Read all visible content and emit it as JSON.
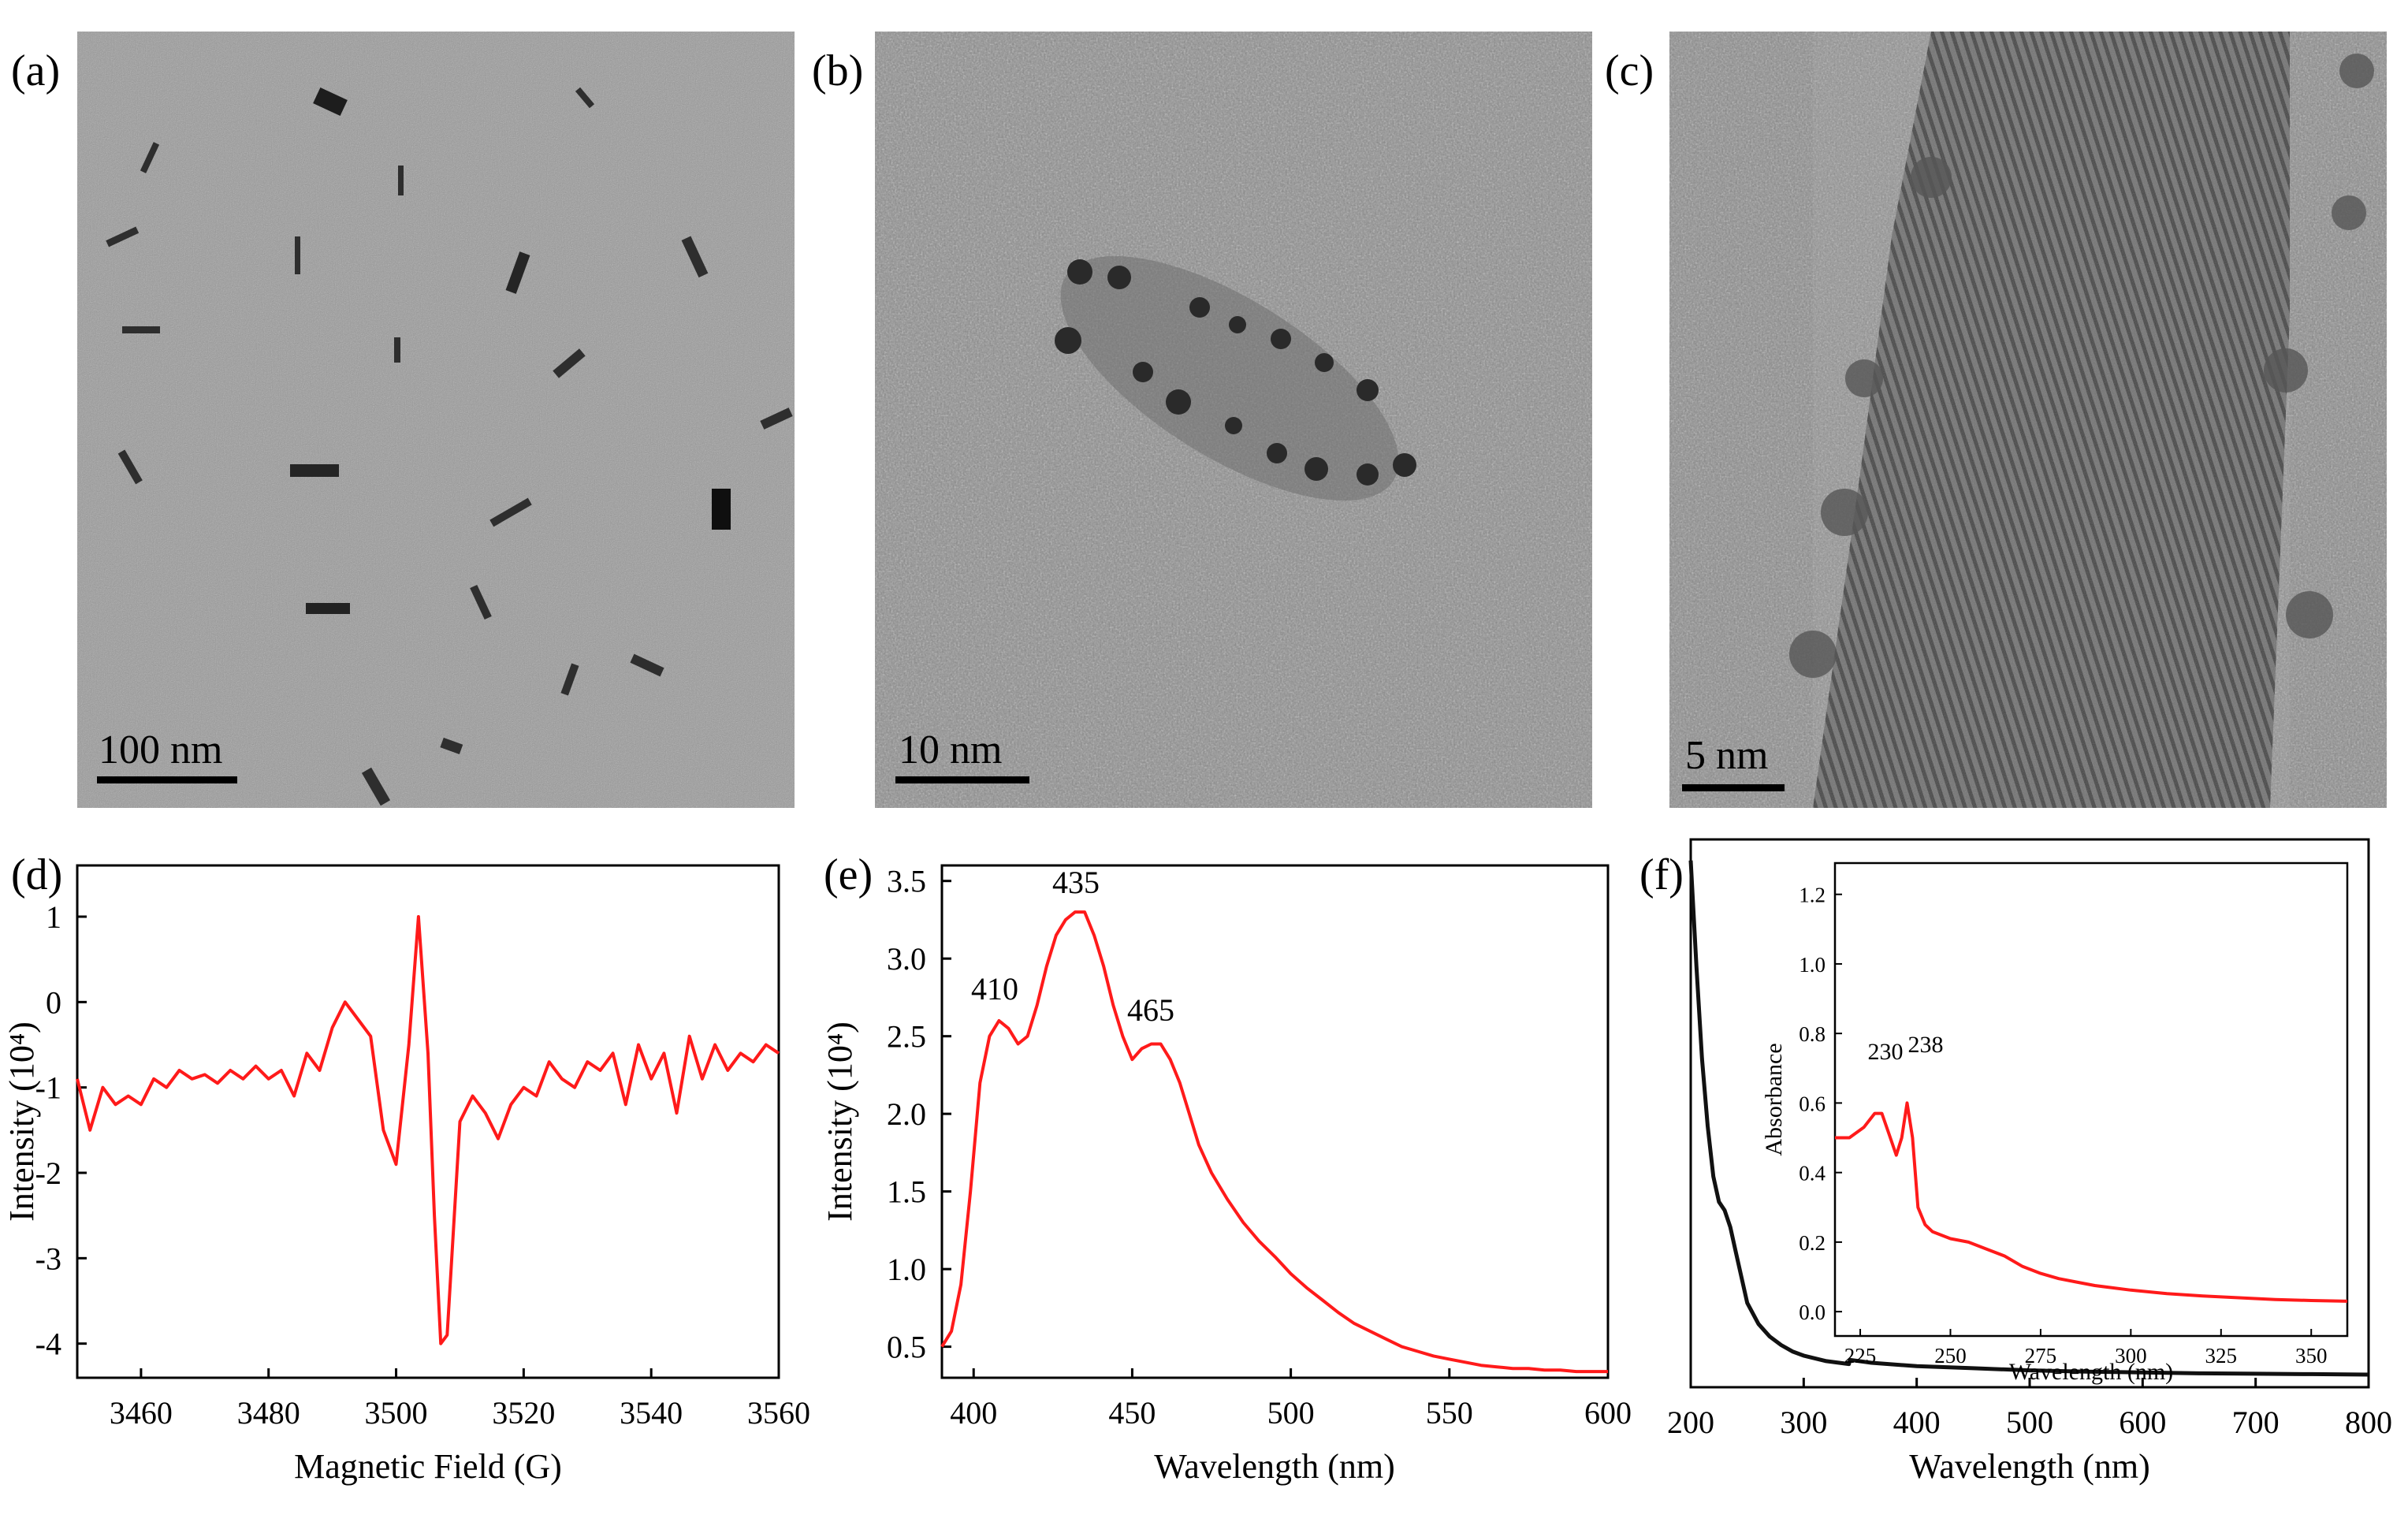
{
  "figure": {
    "panels": {
      "a": {
        "label": "(a)",
        "scale_bar": "100 nm"
      },
      "b": {
        "label": "(b)",
        "scale_bar": "10 nm"
      },
      "c": {
        "label": "(c)",
        "scale_bar": "5 nm"
      },
      "d": {
        "label": "(d)"
      },
      "e": {
        "label": "(e)"
      },
      "f": {
        "label": "(f)"
      }
    },
    "colors": {
      "red_curve": "#ff1a1a",
      "black_curve": "#111111",
      "tem_background": "#8f8f8f"
    }
  },
  "chart_data": [
    {
      "panel": "d",
      "type": "line",
      "title": "",
      "xlabel": "Magnetic Field (G)",
      "ylabel": "Intensity (10⁴)",
      "xlim": [
        3450,
        3560
      ],
      "ylim": [
        -4.4,
        1.6
      ],
      "xticks": [
        3460,
        3480,
        3500,
        3520,
        3540,
        3560
      ],
      "yticks": [
        1,
        0,
        -1,
        -2,
        -3,
        -4
      ],
      "series": [
        {
          "name": "EPR",
          "color": "#ff1a1a",
          "x": [
            3450,
            3452,
            3454,
            3456,
            3458,
            3460,
            3462,
            3464,
            3466,
            3468,
            3470,
            3472,
            3474,
            3476,
            3478,
            3480,
            3482,
            3484,
            3486,
            3488,
            3490,
            3492,
            3494,
            3496,
            3498,
            3500,
            3502,
            3503.5,
            3505,
            3506,
            3507,
            3508,
            3510,
            3512,
            3514,
            3516,
            3518,
            3520,
            3522,
            3524,
            3526,
            3528,
            3530,
            3532,
            3534,
            3536,
            3538,
            3540,
            3542,
            3544,
            3546,
            3548,
            3550,
            3552,
            3554,
            3556,
            3558,
            3560
          ],
          "y": [
            -0.9,
            -1.5,
            -1.0,
            -1.2,
            -1.1,
            -1.2,
            -0.9,
            -1.0,
            -0.8,
            -0.9,
            -0.85,
            -0.95,
            -0.8,
            -0.9,
            -0.75,
            -0.9,
            -0.8,
            -1.1,
            -0.6,
            -0.8,
            -0.3,
            0.0,
            -0.2,
            -0.4,
            -1.5,
            -1.9,
            -0.5,
            1.0,
            -0.6,
            -2.5,
            -4.0,
            -3.9,
            -1.4,
            -1.1,
            -1.3,
            -1.6,
            -1.2,
            -1.0,
            -1.1,
            -0.7,
            -0.9,
            -1.0,
            -0.7,
            -0.8,
            -0.6,
            -1.2,
            -0.5,
            -0.9,
            -0.6,
            -1.3,
            -0.4,
            -0.9,
            -0.5,
            -0.8,
            -0.6,
            -0.7,
            -0.5,
            -0.6
          ]
        }
      ]
    },
    {
      "panel": "e",
      "type": "line",
      "title": "",
      "xlabel": "Wavelength (nm)",
      "ylabel": "Intensity (10⁴)",
      "xlim": [
        390,
        600
      ],
      "ylim": [
        0.3,
        3.6
      ],
      "xticks": [
        400,
        450,
        500,
        550,
        600
      ],
      "yticks": [
        0.5,
        1.0,
        1.5,
        2.0,
        2.5,
        3.0,
        3.5
      ],
      "annotations": [
        "410",
        "435",
        "465"
      ],
      "series": [
        {
          "name": "PL",
          "color": "#ff1a1a",
          "x": [
            390,
            393,
            396,
            399,
            402,
            405,
            408,
            411,
            414,
            417,
            420,
            423,
            426,
            429,
            432,
            435,
            438,
            441,
            444,
            447,
            450,
            453,
            456,
            459,
            462,
            465,
            468,
            471,
            475,
            480,
            485,
            490,
            495,
            500,
            505,
            510,
            515,
            520,
            525,
            530,
            535,
            540,
            545,
            550,
            555,
            560,
            565,
            570,
            575,
            580,
            585,
            590,
            595,
            600
          ],
          "y": [
            0.5,
            0.6,
            0.9,
            1.5,
            2.2,
            2.5,
            2.6,
            2.55,
            2.45,
            2.5,
            2.7,
            2.95,
            3.15,
            3.25,
            3.3,
            3.3,
            3.15,
            2.95,
            2.7,
            2.5,
            2.35,
            2.42,
            2.45,
            2.45,
            2.35,
            2.2,
            2.0,
            1.8,
            1.62,
            1.45,
            1.3,
            1.18,
            1.08,
            0.97,
            0.88,
            0.8,
            0.72,
            0.65,
            0.6,
            0.55,
            0.5,
            0.47,
            0.44,
            0.42,
            0.4,
            0.38,
            0.37,
            0.36,
            0.36,
            0.35,
            0.35,
            0.34,
            0.34,
            0.34
          ]
        }
      ]
    },
    {
      "panel": "f",
      "type": "line",
      "title": "",
      "xlabel": "Wavelength (nm)",
      "ylabel": "",
      "xlim": [
        200,
        800
      ],
      "ylim": [
        0,
        1.3
      ],
      "xticks": [
        200,
        300,
        400,
        500,
        600,
        700,
        800
      ],
      "yticks": [],
      "series": [
        {
          "name": "UV-vis",
          "color": "#111111",
          "x": [
            200,
            205,
            210,
            215,
            220,
            225,
            230,
            235,
            240,
            245,
            250,
            260,
            270,
            280,
            290,
            300,
            320,
            340,
            341,
            360,
            400,
            450,
            500,
            550,
            600,
            650,
            700,
            750,
            800
          ],
          "y": [
            1.25,
            1.0,
            0.78,
            0.62,
            0.5,
            0.44,
            0.42,
            0.38,
            0.32,
            0.26,
            0.2,
            0.15,
            0.12,
            0.1,
            0.085,
            0.075,
            0.062,
            0.055,
            0.065,
            0.058,
            0.05,
            0.045,
            0.04,
            0.037,
            0.035,
            0.033,
            0.032,
            0.031,
            0.03
          ]
        }
      ],
      "inset": {
        "xlabel": "Wavelength (nm)",
        "ylabel": "Absorbance",
        "xlim": [
          218,
          360
        ],
        "ylim": [
          -0.07,
          1.29
        ],
        "xticks": [
          225,
          250,
          275,
          300,
          325,
          350
        ],
        "yticks": [
          0.0,
          0.2,
          0.4,
          0.6,
          0.8,
          1.0,
          1.2
        ],
        "annotations": [
          "230",
          "238"
        ],
        "series": [
          {
            "name": "UV-vis inset",
            "color": "#ff1a1a",
            "x": [
              218,
              222,
              226,
              229,
              231,
              233,
              235,
              236.5,
              238,
              239.5,
              241,
              243,
              245,
              250,
              255,
              260,
              265,
              270,
              275,
              280,
              285,
              290,
              300,
              310,
              320,
              330,
              340,
              350,
              360
            ],
            "y": [
              0.5,
              0.5,
              0.53,
              0.57,
              0.57,
              0.51,
              0.45,
              0.5,
              0.6,
              0.5,
              0.3,
              0.25,
              0.23,
              0.21,
              0.2,
              0.18,
              0.16,
              0.13,
              0.11,
              0.095,
              0.085,
              0.075,
              0.062,
              0.052,
              0.045,
              0.04,
              0.035,
              0.032,
              0.03
            ]
          }
        ]
      }
    }
  ]
}
